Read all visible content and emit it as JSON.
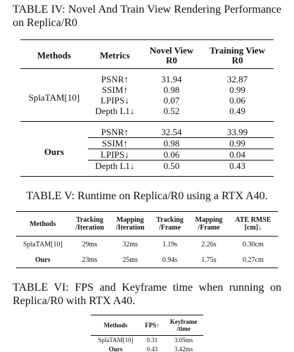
{
  "tables": [
    {
      "caption": "TABLE IV: Novel And Train View Rendering Performance on Replica/R0",
      "header": [
        [
          "Methods"
        ],
        [
          "Metrics"
        ],
        [
          "Novel View",
          "R0"
        ],
        [
          "Training View",
          "R0"
        ]
      ],
      "groups": [
        {
          "method": "SplaTAM[10]",
          "rows": [
            [
              "PSNR↑",
              "31.94",
              "32.87"
            ],
            [
              "SSIM↑",
              "0.98",
              "0.99"
            ],
            [
              "LPIPS↓",
              "0.07",
              "0.06"
            ],
            [
              "Depth L1↓",
              "0.52",
              "0.49"
            ]
          ]
        },
        {
          "method": "Ours",
          "rows": [
            [
              "PSNR↑",
              "32.54",
              "33.99"
            ],
            [
              "SSIM↑",
              "0.98",
              "0.99"
            ],
            [
              "LPIPS↓",
              "0.06",
              "0.04"
            ],
            [
              "Depth L1↓",
              "0.50",
              "0.43"
            ]
          ]
        }
      ]
    },
    {
      "caption": "TABLE V: Runtime on Replica/R0 using a RTX A40.",
      "header": [
        [
          "Methods"
        ],
        [
          "Tracking",
          "/Iteration"
        ],
        [
          "Mapping",
          "/Iteration"
        ],
        [
          "Tracking",
          "/Frame"
        ],
        [
          "Mapping",
          "/Frame"
        ],
        [
          "ATE RMSE",
          "[cm]↓"
        ]
      ],
      "rows": [
        [
          "SplaTAM[10]",
          "29ms",
          "32ms",
          "1.19s",
          "2.26s",
          "0.30cm"
        ],
        [
          "Ours",
          "23ms",
          "25ms",
          "0.94s",
          "1.75s",
          "0.27cm"
        ]
      ]
    },
    {
      "caption": "TABLE VI: FPS and Keyframe time when running on Replica/R0 with RTX A40.",
      "header": [
        [
          "Methods"
        ],
        [
          "FPS↑"
        ],
        [
          "Keyframe",
          "/time"
        ]
      ],
      "rows": [
        [
          "SplaTAM[10]",
          "0.31",
          "3.05ms"
        ],
        [
          "Ours",
          "0.43",
          "3.42ms"
        ]
      ]
    }
  ]
}
